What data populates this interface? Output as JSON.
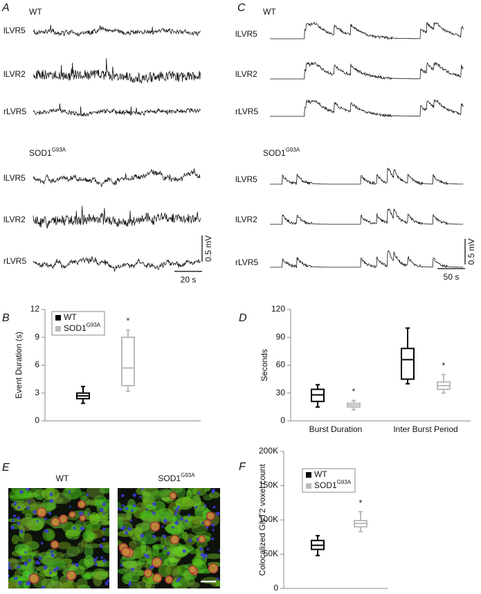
{
  "traces": [
    {
      "letter": "A",
      "scale_y": "0.5 mV",
      "scale_x": "20 s",
      "groups": [
        {
          "name": "WT",
          "traces": [
            "lLVR5",
            "lLVR2",
            "rLVR5"
          ]
        },
        {
          "name": "SOD1",
          "name_sup": "G93A",
          "traces": [
            "lLVR5",
            "lLVR2",
            "rLVR5"
          ]
        }
      ]
    },
    {
      "letter": "C",
      "scale_y": "0.5 mV",
      "scale_x": "50 s",
      "groups": [
        {
          "name": "WT",
          "traces": [
            "lLVR5",
            "lLVR2",
            "rLVR5"
          ]
        },
        {
          "name": "SOD1",
          "name_sup": "G93A",
          "traces": [
            "lLVR5",
            "lLVR2",
            "rLVR5"
          ]
        }
      ]
    }
  ],
  "images": {
    "letter": "E",
    "panels": [
      {
        "name": "WT"
      },
      {
        "name": "SOD1",
        "name_sup": "G93A"
      }
    ]
  },
  "chart_data": [
    {
      "type": "box",
      "label": "B",
      "ylabel": "Event Duration (s)",
      "categories": [
        null
      ],
      "ylim": [
        0,
        12
      ],
      "yticks": [
        0,
        3,
        6,
        9,
        12
      ],
      "legend": "upper left",
      "series": [
        {
          "name": "WT",
          "color": "#000000",
          "boxes": [
            {
              "min": 1.9,
              "q1": 2.4,
              "median": 2.7,
              "q3": 3.0,
              "max": 3.7
            }
          ]
        },
        {
          "name": "SOD1",
          "name_sup": "G93A",
          "color": "#bbbbbb",
          "boxes": [
            {
              "min": 3.2,
              "q1": 3.8,
              "median": 5.7,
              "q3": 9.0,
              "max": 9.8
            }
          ],
          "annotations": [
            "*"
          ]
        }
      ]
    },
    {
      "type": "box",
      "label": "D",
      "ylabel": "Seconds",
      "categories": [
        "Burst Duration",
        "Inter Burst Period"
      ],
      "ylim": [
        0,
        120
      ],
      "yticks": [
        0,
        30,
        60,
        90,
        120
      ],
      "series": [
        {
          "name": "WT",
          "color": "#000000",
          "boxes": [
            {
              "min": 15,
              "q1": 21,
              "median": 28,
              "q3": 34,
              "max": 39
            },
            {
              "min": 40,
              "q1": 45,
              "median": 66,
              "q3": 78,
              "max": 100
            }
          ]
        },
        {
          "name": "SOD1",
          "name_sup": "G93A",
          "color": "#bbbbbb",
          "boxes": [
            {
              "min": 12,
              "q1": 15,
              "median": 17,
              "q3": 19,
              "max": 22
            },
            {
              "min": 30,
              "q1": 34,
              "median": 38,
              "q3": 42,
              "max": 50
            }
          ],
          "annotations": [
            "*",
            "*"
          ]
        }
      ]
    },
    {
      "type": "box",
      "label": "F",
      "ylabel": "Colocalized GlyT2 voxel count",
      "categories": [
        null
      ],
      "ylim": [
        0,
        200000
      ],
      "yticks": [
        0,
        {
          "value": 50000,
          "label": "50K"
        },
        {
          "value": 100000,
          "label": "100K"
        },
        {
          "value": 150000,
          "label": "150K"
        },
        {
          "value": 200000,
          "label": "200K"
        }
      ],
      "legend": "upper left",
      "series": [
        {
          "name": "WT",
          "color": "#000000",
          "boxes": [
            {
              "min": 48000,
              "q1": 57000,
              "median": 63000,
              "q3": 70000,
              "max": 77000
            }
          ]
        },
        {
          "name": "SOD1",
          "name_sup": "G93A",
          "color": "#bbbbbb",
          "boxes": [
            {
              "min": 83000,
              "q1": 90000,
              "median": 95000,
              "q3": 99000,
              "max": 112000
            }
          ],
          "annotations": [
            "*"
          ]
        }
      ]
    }
  ]
}
